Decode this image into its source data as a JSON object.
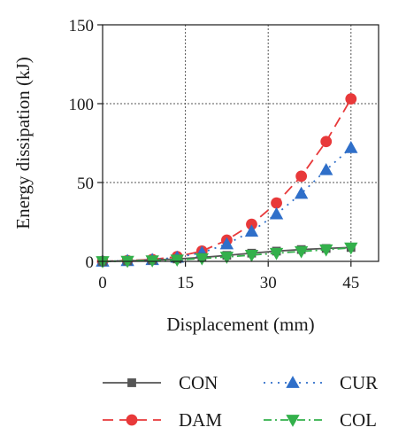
{
  "chart_data": {
    "type": "line",
    "xlabel": "Displacement (mm)",
    "ylabel": "Energy dissipation (kJ)",
    "xlim": [
      0,
      50
    ],
    "ylim": [
      0,
      150
    ],
    "xticks": [
      0,
      15,
      30,
      45
    ],
    "yticks": [
      0,
      50,
      100,
      150
    ],
    "x_tick_labels": [
      "0",
      "15",
      "30",
      "45"
    ],
    "y_tick_labels": [
      "0",
      "50",
      "100",
      "150"
    ],
    "grid": "dotted",
    "legend_position": "bottom",
    "series": [
      {
        "name": "CON",
        "color": "#555555",
        "marker": "square",
        "dash": "solid",
        "x": [
          0,
          4.5,
          9,
          13.5,
          18,
          22.5,
          27,
          31.5,
          36,
          40.5,
          45
        ],
        "y": [
          0,
          0.3,
          0.8,
          1.5,
          2.5,
          3.8,
          5.2,
          6.5,
          7.5,
          8.2,
          8.8
        ]
      },
      {
        "name": "DAM",
        "color": "#e8393a",
        "marker": "circle",
        "dash": "long-dash",
        "x": [
          0,
          4.5,
          9,
          13.5,
          18,
          22.5,
          27,
          31.5,
          36,
          40.5,
          45
        ],
        "y": [
          0,
          0.5,
          1.2,
          3,
          6.5,
          13.5,
          23.5,
          37,
          54,
          76,
          103
        ]
      },
      {
        "name": "CUR",
        "color": "#2f6fc9",
        "marker": "triangle-up",
        "dash": "dotted",
        "x": [
          0,
          4.5,
          9,
          13.5,
          18,
          22.5,
          27,
          31.5,
          36,
          40.5,
          45
        ],
        "y": [
          0,
          0.4,
          1,
          2.5,
          5.5,
          11,
          19,
          30,
          43,
          58,
          72
        ]
      },
      {
        "name": "COL",
        "color": "#33b04b",
        "marker": "triangle-down",
        "dash": "dash-dot",
        "x": [
          0,
          4.5,
          9,
          13.5,
          18,
          22.5,
          27,
          31.5,
          36,
          40.5,
          45
        ],
        "y": [
          0,
          0.2,
          0.5,
          1,
          1.8,
          2.8,
          4,
          5.2,
          6.3,
          7.4,
          8.6
        ]
      }
    ]
  }
}
